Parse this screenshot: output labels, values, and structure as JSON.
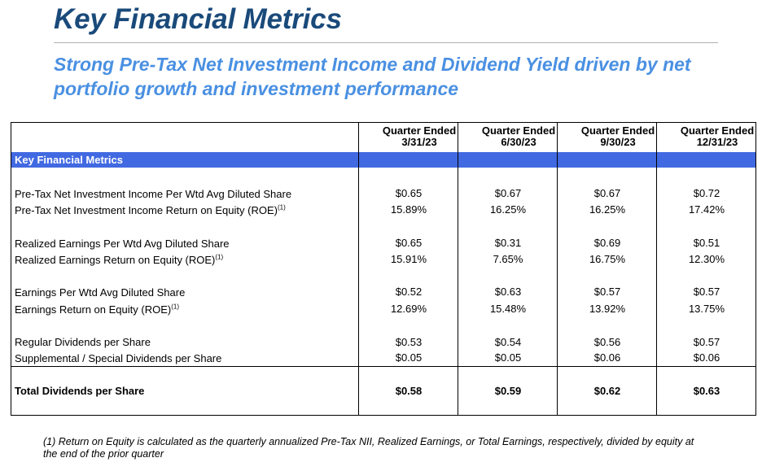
{
  "title": "Key Financial Metrics",
  "subtitle": "Strong Pre-Tax Net Investment Income and Dividend Yield driven by net portfolio growth and investment performance",
  "table": {
    "section_label": "Key Financial Metrics",
    "columns": [
      {
        "line1": "Quarter Ended",
        "line2": "3/31/23"
      },
      {
        "line1": "Quarter Ended",
        "line2": "6/30/23"
      },
      {
        "line1": "Quarter Ended",
        "line2": "9/30/23"
      },
      {
        "line1": "Quarter Ended",
        "line2": "12/31/23"
      }
    ],
    "rows": [
      {
        "label": "Pre-Tax Net Investment Income Per Wtd Avg Diluted Share",
        "sup": "",
        "values": [
          "$0.65",
          "$0.67",
          "$0.67",
          "$0.72"
        ]
      },
      {
        "label": "Pre-Tax Net Investment Income Return on Equity (ROE)",
        "sup": "(1)",
        "values": [
          "15.89%",
          "16.25%",
          "16.25%",
          "17.42%"
        ]
      },
      {
        "label": "Realized Earnings Per Wtd Avg Diluted Share",
        "sup": "",
        "values": [
          "$0.65",
          "$0.31",
          "$0.69",
          "$0.51"
        ]
      },
      {
        "label": "Realized Earnings Return on Equity (ROE)",
        "sup": "(1)",
        "values": [
          "15.91%",
          "7.65%",
          "16.75%",
          "12.30%"
        ]
      },
      {
        "label": "Earnings Per Wtd Avg Diluted Share",
        "sup": "",
        "values": [
          "$0.52",
          "$0.63",
          "$0.57",
          "$0.57"
        ]
      },
      {
        "label": "Earnings Return on Equity (ROE)",
        "sup": "(1)",
        "values": [
          "12.69%",
          "15.48%",
          "13.92%",
          "13.75%"
        ]
      },
      {
        "label": "Regular Dividends per Share",
        "sup": "",
        "values": [
          "$0.53",
          "$0.54",
          "$0.56",
          "$0.57"
        ]
      },
      {
        "label": "Supplemental / Special Dividends per Share",
        "sup": "",
        "values": [
          "$0.05",
          "$0.05",
          "$0.06",
          "$0.06"
        ]
      }
    ],
    "total": {
      "label": "Total Dividends per Share",
      "values": [
        "$0.58",
        "$0.59",
        "$0.62",
        "$0.63"
      ]
    }
  },
  "footnote": "(1)  Return on Equity is calculated as the quarterly annualized Pre-Tax NII, Realized Earnings, or Total Earnings, respectively, divided by equity at the end of the prior quarter"
}
